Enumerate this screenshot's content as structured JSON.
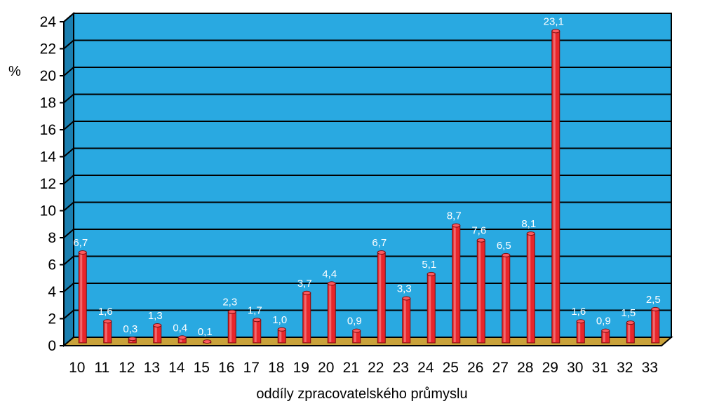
{
  "chart_data": {
    "type": "bar",
    "title": "",
    "xlabel": "oddíly zpracovatelského průmyslu",
    "ylabel": "%",
    "ylim": [
      0,
      24
    ],
    "yticks": [
      0,
      2,
      4,
      6,
      8,
      10,
      12,
      14,
      16,
      18,
      20,
      22,
      24
    ],
    "grid": true,
    "legend": "none",
    "categories": [
      "10",
      "11",
      "12",
      "13",
      "14",
      "15",
      "16",
      "17",
      "18",
      "19",
      "20",
      "21",
      "22",
      "23",
      "24",
      "25",
      "26",
      "27",
      "28",
      "29",
      "30",
      "31",
      "32",
      "33"
    ],
    "values": [
      6.7,
      1.6,
      0.3,
      1.3,
      0.4,
      0.1,
      2.3,
      1.7,
      1.0,
      3.7,
      4.4,
      0.9,
      6.7,
      3.3,
      5.1,
      8.7,
      7.6,
      6.5,
      8.1,
      23.1,
      1.6,
      0.9,
      1.5,
      2.5
    ],
    "value_labels": [
      "6,7",
      "1,6",
      "0,3",
      "1,3",
      "0,4",
      "0,1",
      "2,3",
      "1,7",
      "1,0",
      "3,7",
      "4,4",
      "0,9",
      "6,7",
      "3,3",
      "5,1",
      "8,7",
      "7,6",
      "6,5",
      "8,1",
      "23,1",
      "1,6",
      "0,9",
      "1,5",
      "2,5"
    ],
    "colors": {
      "plot_background": "#29a9e1",
      "bar": "#e8262b",
      "floor": "#c9a23a",
      "gridline": "#000000",
      "data_label": "#ffffff"
    }
  }
}
